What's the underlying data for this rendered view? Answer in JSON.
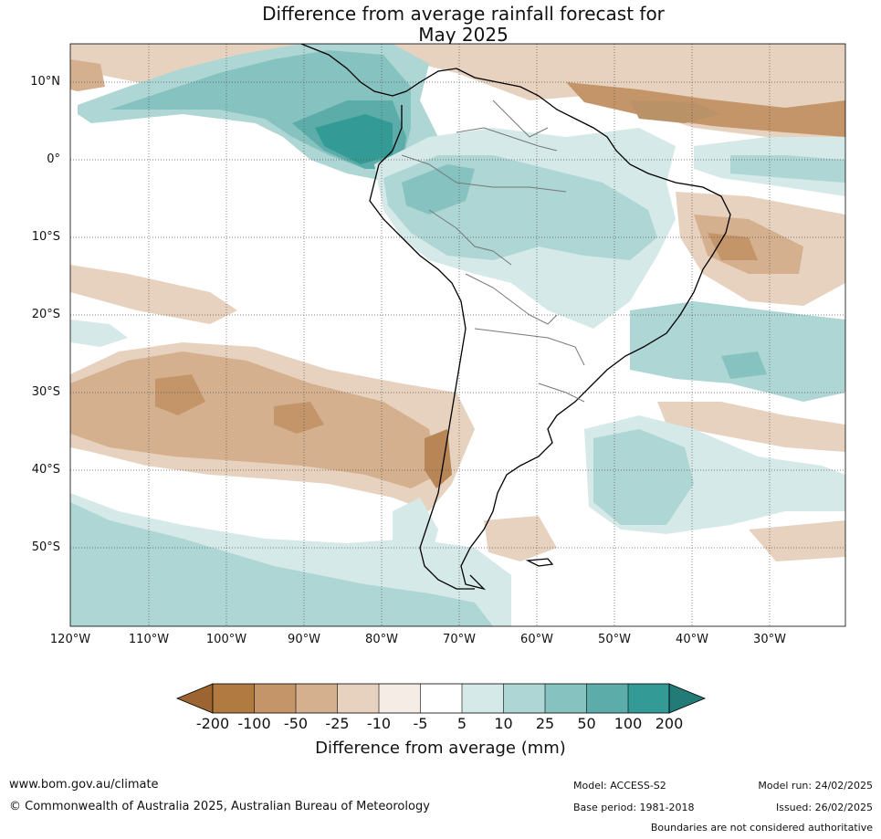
{
  "title_line1": "Difference from average rainfall forecast for",
  "title_line2": "May 2025",
  "lat_labels": [
    "10°N",
    "0°",
    "10°S",
    "20°S",
    "30°S",
    "40°S",
    "50°S"
  ],
  "lon_labels": [
    "120°W",
    "110°W",
    "100°W",
    "90°W",
    "80°W",
    "70°W",
    "60°W",
    "50°W",
    "40°W",
    "30°W"
  ],
  "colorbar": {
    "ticks": [
      "-200",
      "-100",
      "-50",
      "-25",
      "-10",
      "-5",
      "5",
      "10",
      "25",
      "50",
      "100",
      "200"
    ],
    "colors": [
      "#9c6430",
      "#b07a40",
      "#c49568",
      "#d4b08e",
      "#e6d2be",
      "#f4ece5",
      "#ffffff",
      "#d5e9e8",
      "#add6d4",
      "#86c2bf",
      "#5cadaa",
      "#339a95",
      "#237b77"
    ],
    "title": "Difference from average (mm)"
  },
  "footer": {
    "url": "www.bom.gov.au/climate",
    "copyright": "© Commonwealth of Australia 2025, Australian Bureau of Meteorology",
    "model": "Model: ACCESS-S2",
    "base_period": "Base period: 1981-2018",
    "model_run": "Model run: 24/02/2025",
    "issued": "Issued: 26/02/2025",
    "disclaimer": "Boundaries are not considered authoritative"
  }
}
